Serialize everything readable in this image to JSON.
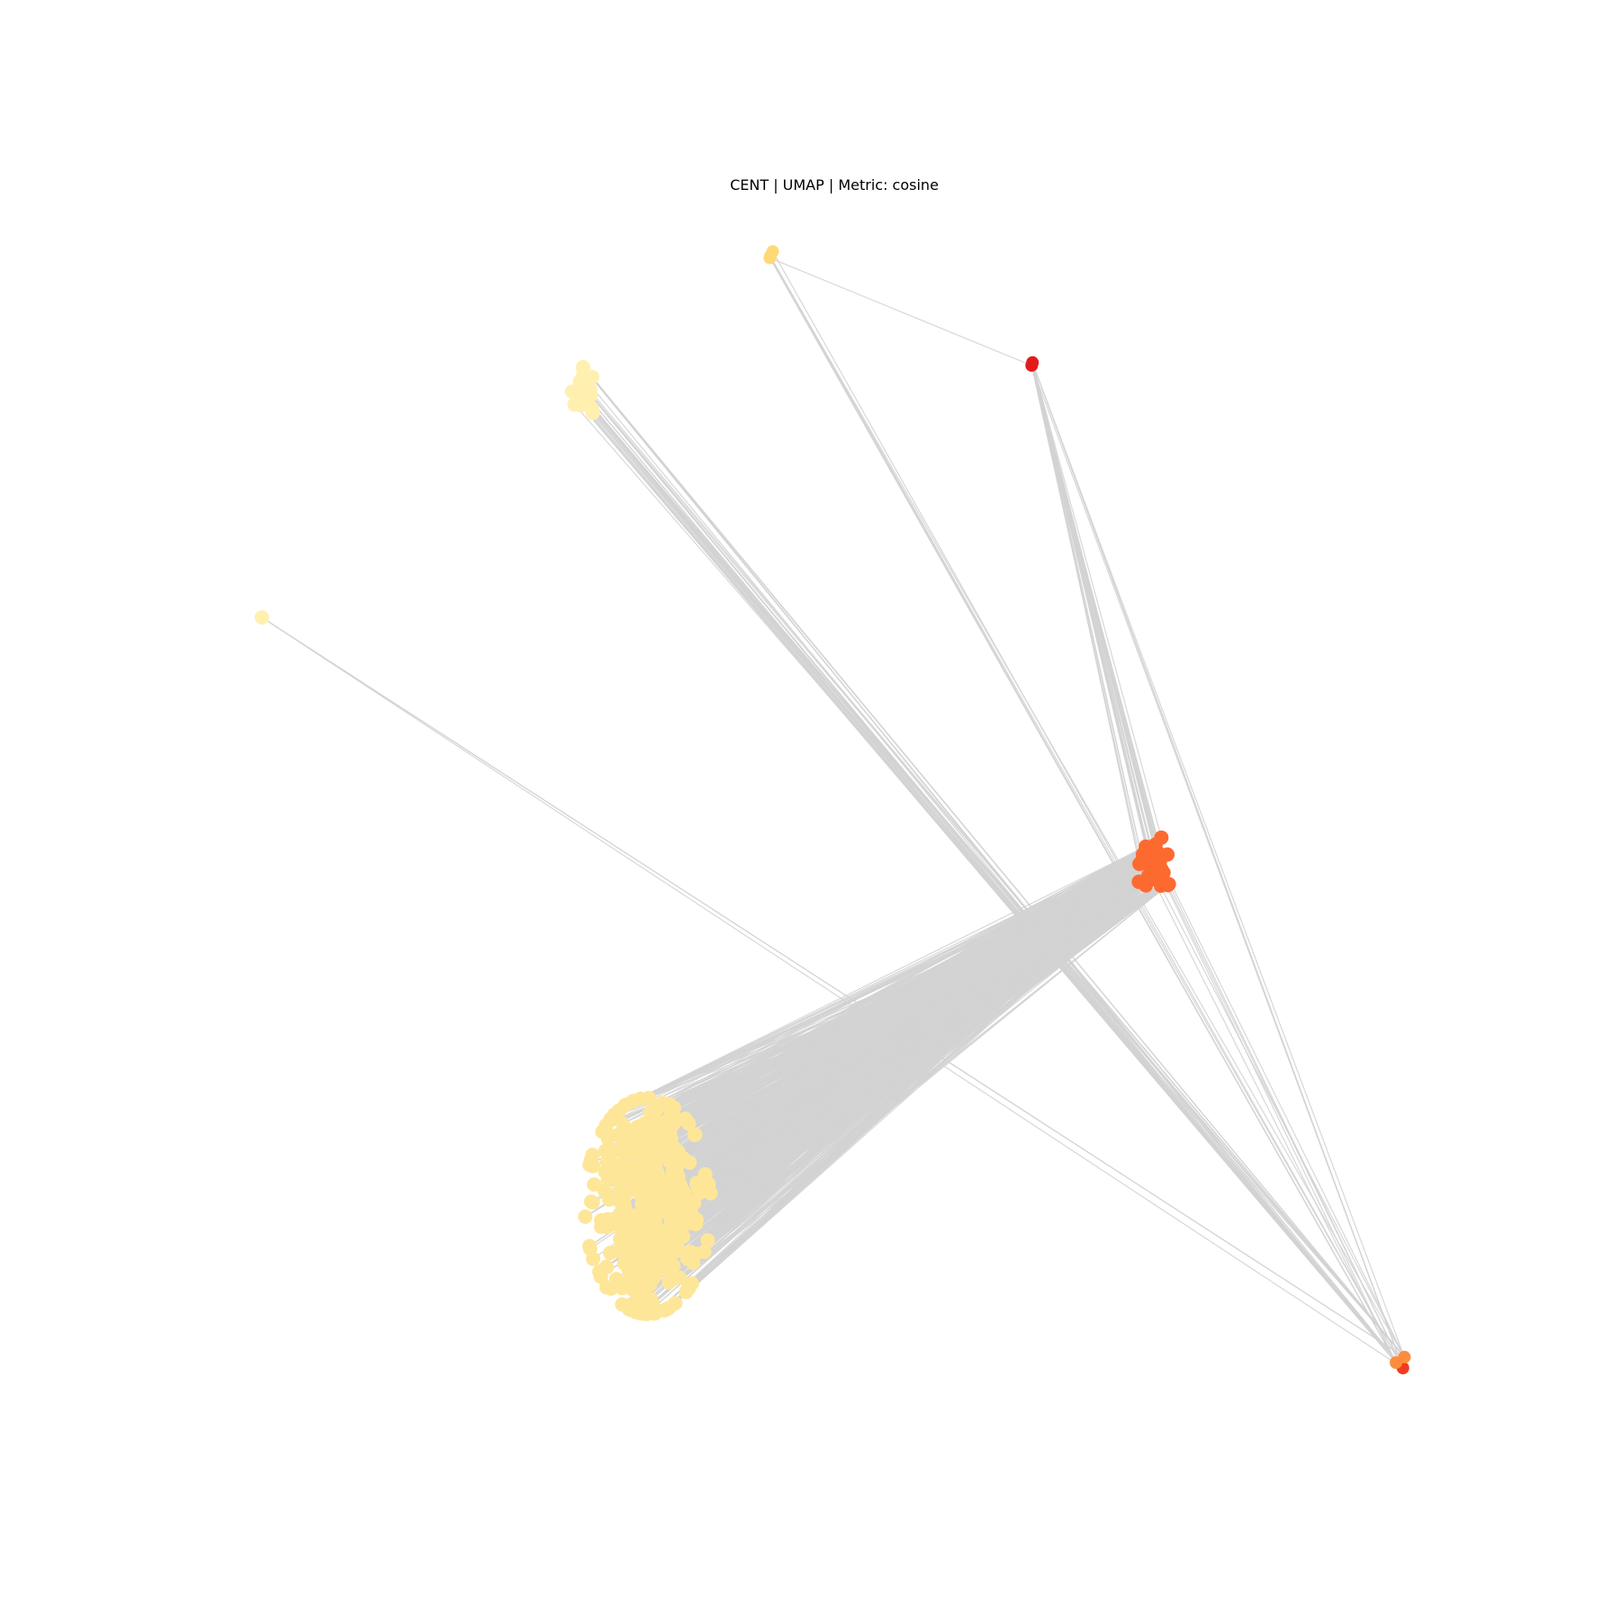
{
  "figure": {
    "title": "CENT | UMAP | Metric: cosine"
  },
  "colors": {
    "background": "#ffffff",
    "edge": "#d3d3d3",
    "cluster_pale_yellow": "#fff0b0",
    "cluster_light_yellow": "#fee699",
    "cluster_gold": "#fed976",
    "cluster_orange_red": "#fd6a30",
    "cluster_red": "#e31a1c",
    "cluster_orange": "#fd8d3c"
  },
  "clusters": [
    {
      "id": "top-center",
      "color": "cluster_gold"
    },
    {
      "id": "upper-left-small",
      "color": "cluster_pale_yellow"
    },
    {
      "id": "far-left-single",
      "color": "cluster_pale_yellow"
    },
    {
      "id": "top-right-red",
      "color": "cluster_red"
    },
    {
      "id": "right-middle",
      "color": "cluster_orange_red"
    },
    {
      "id": "large-lower",
      "color": "cluster_light_yellow"
    },
    {
      "id": "bottom-right",
      "color": "cluster_orange"
    }
  ]
}
